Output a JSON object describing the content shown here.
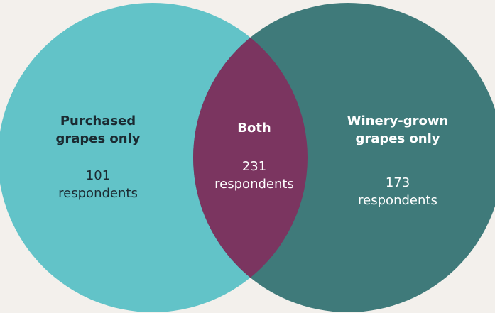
{
  "chart_data": {
    "type": "venn",
    "sets": [
      {
        "name": "Purchased grapes only",
        "value": 101,
        "value_label": "101 respondents",
        "color": "#62c3c8"
      },
      {
        "name": "Winery-grown grapes only",
        "value": 173,
        "value_label": "173 respondents",
        "color": "#3f7a7a"
      }
    ],
    "intersection": {
      "name": "Both",
      "value": 231,
      "value_label": "231 respondents",
      "color": "#7b3560"
    }
  }
}
